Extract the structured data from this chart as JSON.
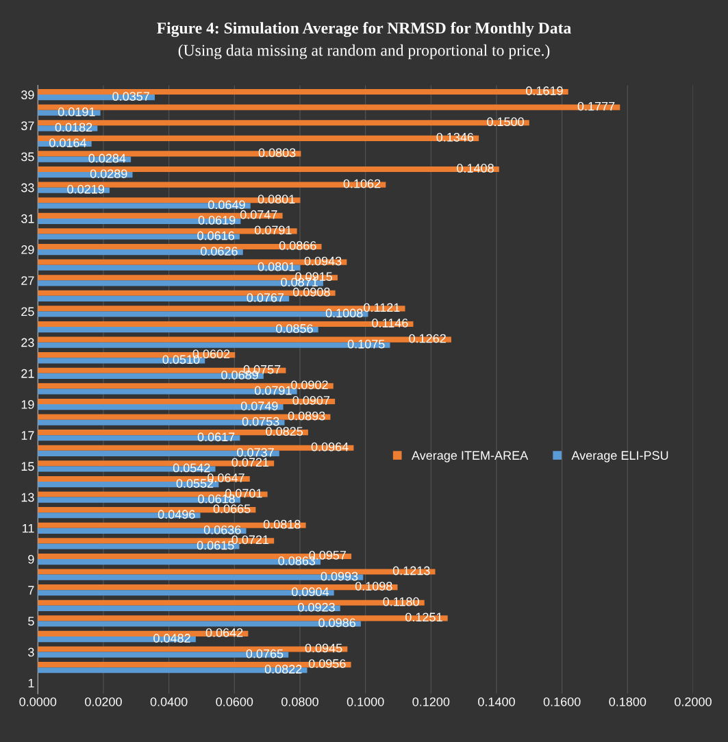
{
  "chart_data": {
    "type": "bar",
    "orientation": "horizontal",
    "title": "Figure 4: Simulation Average for NRMSD for Monthly Data",
    "subtitle": "(Using data missing at random and proportional to price.)",
    "categories": [
      "39",
      null,
      "37",
      null,
      "35",
      null,
      "33",
      null,
      "31",
      null,
      "29",
      null,
      "27",
      null,
      "25",
      null,
      "23",
      null,
      "21",
      null,
      "19",
      null,
      "17",
      null,
      "15",
      null,
      "13",
      null,
      "11",
      null,
      "9",
      null,
      "7",
      null,
      "5",
      null,
      "3",
      null,
      "1"
    ],
    "series": [
      {
        "name": "Average ITEM-AREA",
        "color": "#ed7d31",
        "values": [
          0.1619,
          0.1777,
          0.15,
          0.1346,
          0.0803,
          0.1408,
          0.1062,
          0.0801,
          0.0747,
          0.0791,
          0.0866,
          0.0943,
          0.0915,
          0.0908,
          0.1121,
          0.1146,
          0.1262,
          0.0602,
          0.0757,
          0.0902,
          0.0907,
          0.0893,
          0.0825,
          0.0964,
          0.0721,
          0.0647,
          0.0701,
          0.0665,
          0.0818,
          0.0721,
          0.0957,
          0.1213,
          0.1098,
          0.118,
          0.1251,
          0.0642,
          0.0945,
          0.0956,
          null
        ],
        "value_labels": [
          "0.1619",
          "0.1777",
          "0.1500",
          "0.1346",
          "0.0803",
          "0.1408",
          "0.1062",
          "0.0801",
          "0.0747",
          "0.0791",
          "0.0866",
          "0.0943",
          "0.0915",
          "0.0908",
          "0.1121",
          "0.1146",
          "0.1262",
          "0.0602",
          "0.0757",
          "0.0902",
          "0.0907",
          "0.0893",
          "0.0825",
          "0.0964",
          "0.0721",
          "0.0647",
          "0.0701",
          "0.0665",
          "0.0818",
          "0.0721",
          "0.0957",
          "0.1213",
          "0.1098",
          "0.1180",
          "0.1251",
          "0.0642",
          "0.0945",
          "0.0956",
          null
        ]
      },
      {
        "name": "Average ELI-PSU",
        "color": "#5b9bd5",
        "values": [
          0.0357,
          0.0191,
          0.0182,
          0.0164,
          0.0284,
          0.0289,
          0.0219,
          0.0649,
          0.0619,
          0.0616,
          0.0626,
          0.0801,
          0.0871,
          0.0767,
          0.1008,
          0.0856,
          0.1075,
          0.051,
          0.0689,
          0.0791,
          0.0749,
          0.0753,
          0.0617,
          0.0737,
          0.0542,
          0.0552,
          0.0618,
          0.0496,
          0.0636,
          0.0615,
          0.0863,
          0.0993,
          0.0904,
          0.0923,
          0.0986,
          0.0482,
          0.0765,
          0.0822,
          null
        ],
        "value_labels": [
          "0.0357",
          "0.0191",
          "0.0182",
          "0.0164",
          "0.0284",
          "0.0289",
          "0.0219",
          "0.0649",
          "0.0619",
          "0.0616",
          "0.0626",
          "0.0801",
          "0.0871",
          "0.0767",
          "0.1008",
          "0.0856",
          "0.1075",
          "0.0510",
          "0.0689",
          "0.0791",
          "0.0749",
          "0.0753",
          "0.0617",
          "0.0737",
          "0.0542",
          "0.0552",
          "0.0618",
          "0.0496",
          "0.0636",
          "0.0615",
          "0.0863",
          "0.0993",
          "0.0904",
          "0.0923",
          "0.0986",
          "0.0482",
          "0.0765",
          "0.0822",
          null
        ]
      }
    ],
    "xlim": [
      0,
      0.2
    ],
    "xticks": [
      {
        "value": 0,
        "label": "0.0000"
      },
      {
        "value": 0.02,
        "label": "0.0200"
      },
      {
        "value": 0.04,
        "label": "0.0400"
      },
      {
        "value": 0.06,
        "label": "0.0600"
      },
      {
        "value": 0.08,
        "label": "0.0800"
      },
      {
        "value": 0.1,
        "label": "0.1000"
      },
      {
        "value": 0.12,
        "label": "0.1200"
      },
      {
        "value": 0.14,
        "label": "0.1400"
      },
      {
        "value": 0.16,
        "label": "0.1600"
      },
      {
        "value": 0.18,
        "label": "0.1800"
      },
      {
        "value": 0.2,
        "label": "0.2000"
      }
    ],
    "grid": "x",
    "legend": "center right"
  }
}
